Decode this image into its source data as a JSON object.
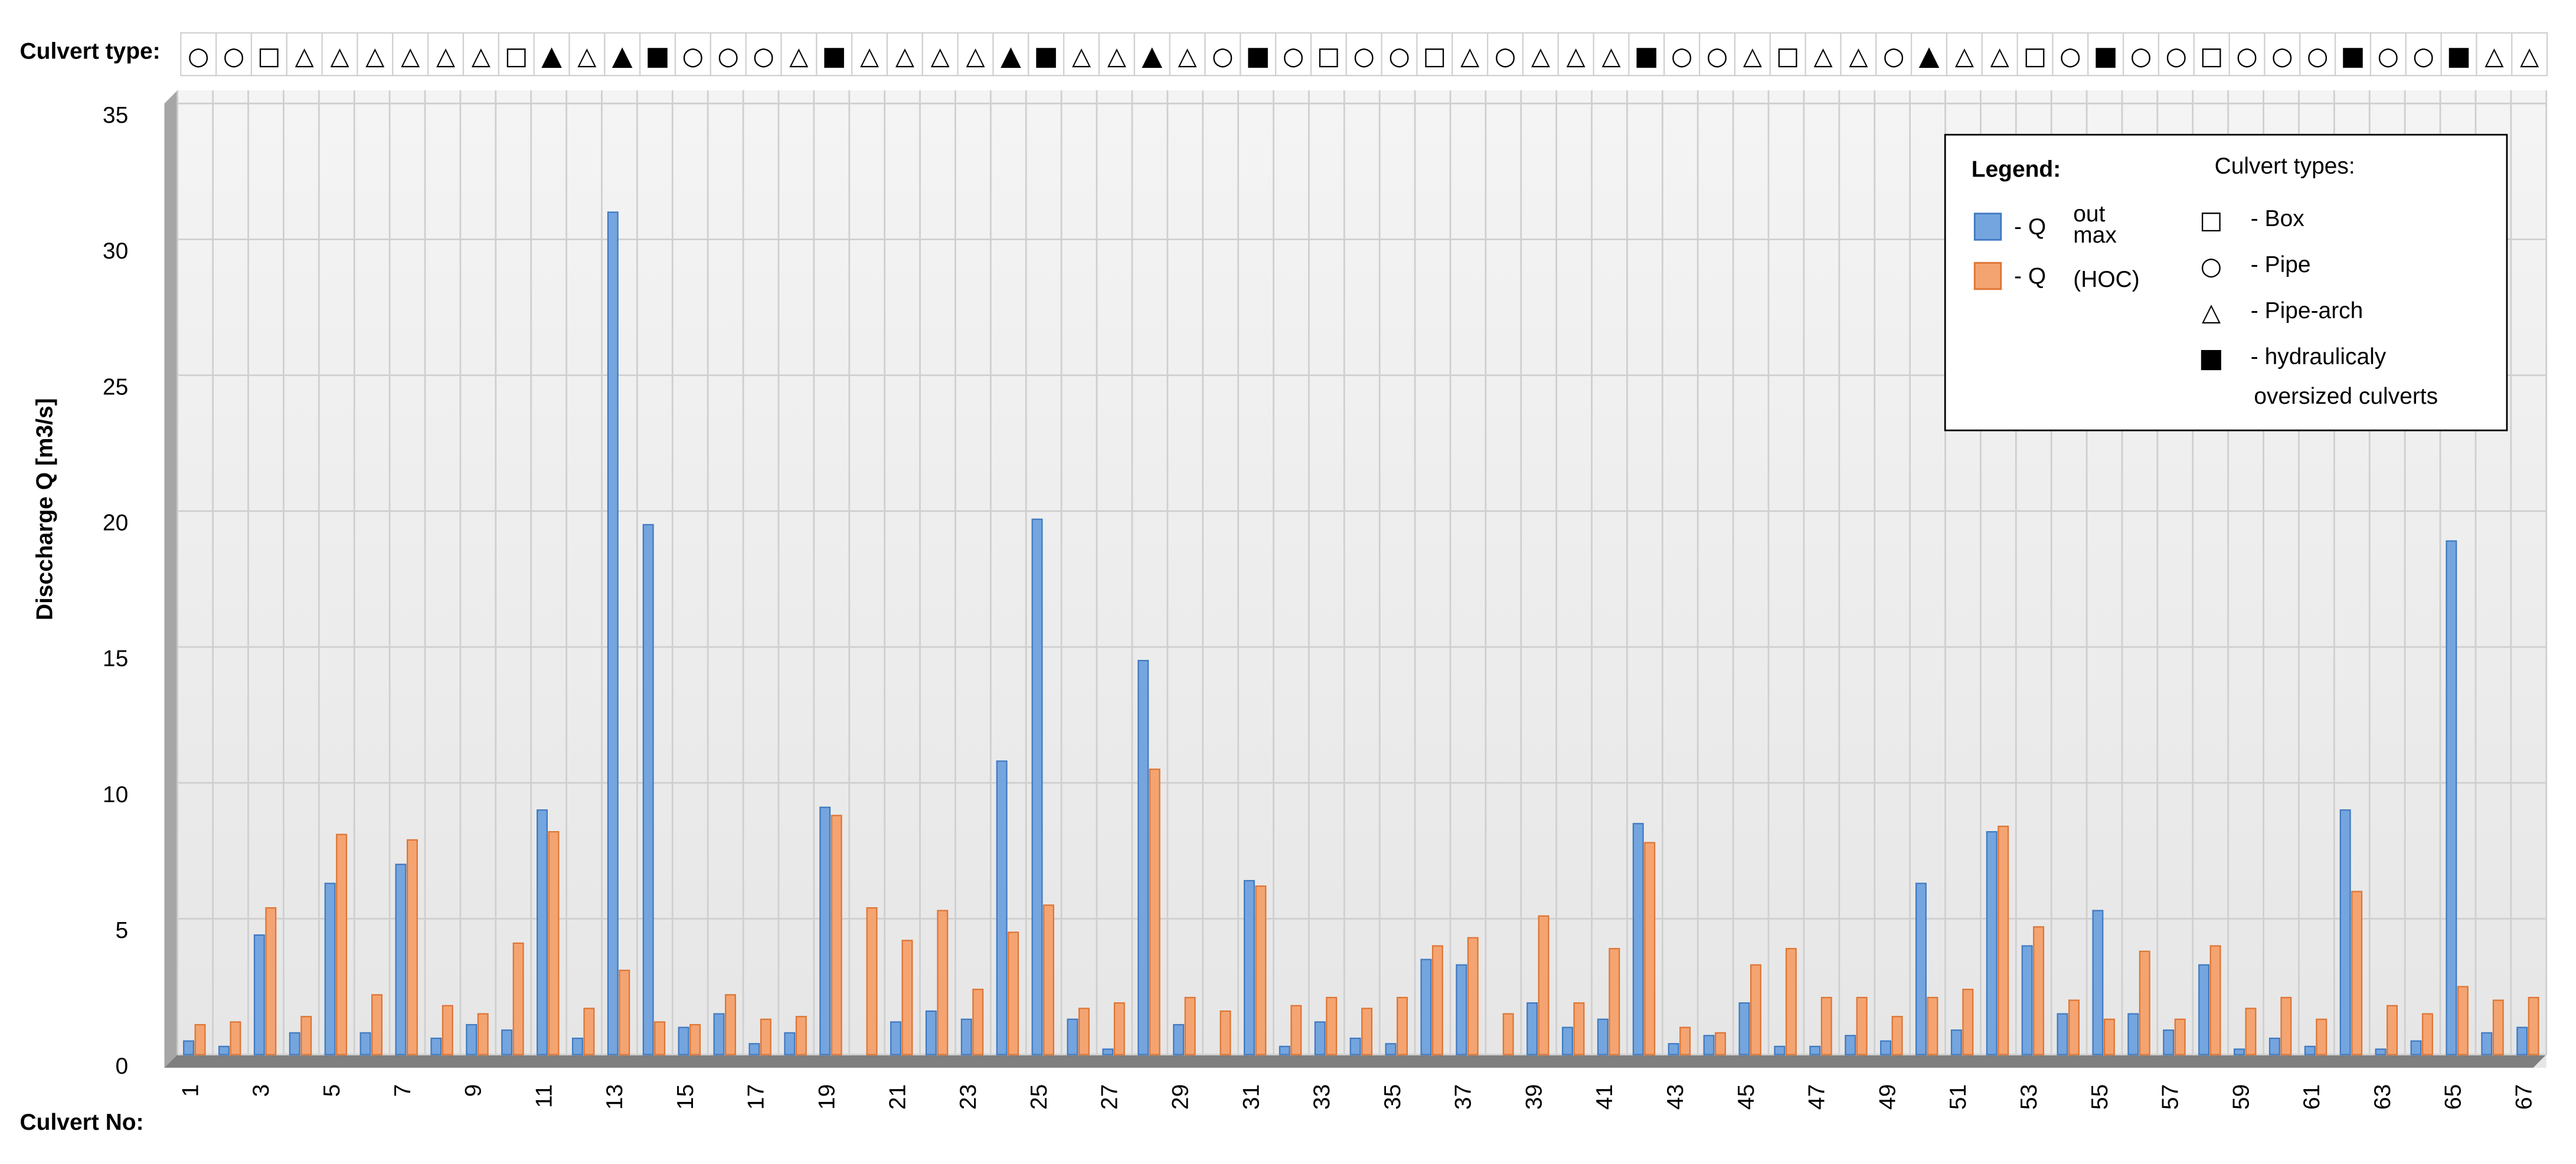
{
  "chart_data": {
    "type": "bar",
    "type_row_label": "Culvert type:",
    "x_label": "Culvert No:",
    "y_label": "Disccharge Q [m3/s]",
    "categories": [
      "1",
      null,
      "3",
      null,
      "5",
      null,
      "7",
      null,
      "9",
      null,
      "11",
      null,
      "13",
      null,
      "15",
      null,
      "17",
      null,
      "19",
      null,
      "21",
      null,
      "23",
      null,
      "25",
      null,
      "27",
      null,
      "29",
      null,
      "31",
      null,
      "33",
      null,
      "35",
      null,
      "37",
      null,
      "39",
      null,
      "41",
      null,
      "43",
      null,
      "45",
      null,
      "47",
      null,
      "49",
      null,
      "51",
      null,
      "53",
      null,
      "55",
      null,
      "57",
      null,
      "59",
      null,
      "61",
      null,
      "63",
      null,
      "65",
      null,
      "67"
    ],
    "culvert_types": [
      "○",
      "○",
      "□",
      "△",
      "△",
      "△",
      "△",
      "△",
      "△",
      "□",
      "▲",
      "△",
      "▲",
      "■",
      "○",
      "○",
      "○",
      "△",
      "■",
      "△",
      "△",
      "△",
      "△",
      "▲",
      "■",
      "△",
      "△",
      "▲",
      "△",
      "○",
      "■",
      "○",
      "□",
      "○",
      "○",
      "□",
      "△",
      "○",
      "△",
      "△",
      "△",
      "■",
      "○",
      "○",
      "△",
      "□",
      "△",
      "△",
      "○",
      "▲",
      "△",
      "△",
      "□",
      "○",
      "■",
      "○",
      "○",
      "□",
      "○",
      "○",
      "○",
      "■",
      "○",
      "○",
      "■",
      "△",
      "△"
    ],
    "oversized_color": "#1e8ff0",
    "series": [
      {
        "name": "- Q",
        "name_sup": "out",
        "name_sub": "max",
        "color": "#74a5de",
        "edge": "#3f79c0",
        "values": [
          0.5,
          0.3,
          4.4,
          0.8,
          6.3,
          0.8,
          7.0,
          0.6,
          1.1,
          0.9,
          9.0,
          0.6,
          31.0,
          19.5,
          1.0,
          1.5,
          0.4,
          0.8,
          9.1,
          0,
          1.2,
          1.6,
          1.3,
          10.8,
          19.7,
          1.3,
          0.2,
          14.5,
          1.1,
          0,
          6.4,
          0.3,
          1.2,
          0.6,
          0.4,
          3.5,
          3.3,
          0,
          1.9,
          1.0,
          1.3,
          8.5,
          0.4,
          0.7,
          1.9,
          0.3,
          0.3,
          0.7,
          0.5,
          6.3,
          0.9,
          8.2,
          4.0,
          1.5,
          5.3,
          1.5,
          0.9,
          3.3,
          0.2,
          0.6,
          0.3,
          9.0,
          0.2,
          0.5,
          18.9,
          0.8,
          1.0
        ]
      },
      {
        "name": "- Q",
        "name_sub": "(HOC)",
        "color": "#f4a471",
        "edge": "#dd7433",
        "values": [
          1.1,
          1.2,
          5.4,
          1.4,
          8.1,
          2.2,
          7.9,
          1.8,
          1.5,
          4.1,
          8.2,
          1.7,
          3.1,
          1.2,
          1.1,
          2.2,
          1.3,
          1.4,
          8.8,
          5.4,
          4.2,
          5.3,
          2.4,
          4.5,
          5.5,
          1.7,
          1.9,
          10.5,
          2.1,
          1.6,
          6.2,
          1.8,
          2.1,
          1.7,
          2.1,
          4.0,
          4.3,
          1.5,
          5.1,
          1.9,
          3.9,
          7.8,
          1.0,
          0.8,
          3.3,
          3.9,
          2.1,
          2.1,
          1.4,
          2.1,
          2.4,
          8.4,
          4.7,
          2.0,
          1.3,
          3.8,
          1.3,
          4.0,
          1.7,
          2.1,
          1.3,
          6.0,
          1.8,
          1.5,
          2.5,
          2.0,
          2.1
        ]
      }
    ],
    "ylim": [
      0,
      35
    ],
    "yticks": [
      0,
      5,
      10,
      15,
      20,
      25,
      30,
      35
    ],
    "grid": true,
    "legend": {
      "title": "Legend:",
      "types_title": "Culvert types:",
      "types": [
        {
          "symbol": "□",
          "label": [
            "- Box"
          ]
        },
        {
          "symbol": "○",
          "label": [
            "- Pipe"
          ]
        },
        {
          "symbol": "△",
          "label": [
            "- Pipe-arch"
          ]
        },
        {
          "symbol": "■",
          "label": [
            "- hydraulicaly",
            "oversized culverts"
          ]
        }
      ]
    }
  }
}
